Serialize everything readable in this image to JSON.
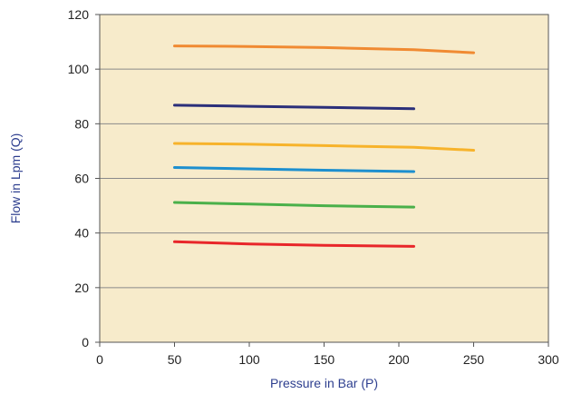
{
  "chart_data": {
    "type": "line",
    "title": "",
    "xlabel": "Pressure in Bar (P)",
    "ylabel": "Flow in Lpm (Q)",
    "xlim": [
      0,
      300
    ],
    "ylim": [
      0,
      120
    ],
    "x_ticks": [
      0,
      50,
      100,
      150,
      200,
      250,
      300
    ],
    "y_ticks": [
      0,
      20,
      40,
      60,
      80,
      100,
      120
    ],
    "grid": "horizontal",
    "background_color": "#f7ebcb",
    "series": [
      {
        "color": "#f08a32",
        "x": [
          50,
          100,
          150,
          210,
          250
        ],
        "y": [
          108.5,
          108.3,
          107.9,
          107.1,
          106
        ]
      },
      {
        "color": "#2b2f7a",
        "x": [
          50,
          100,
          150,
          210
        ],
        "y": [
          86.8,
          86.4,
          86,
          85.5
        ]
      },
      {
        "color": "#f7b32b",
        "x": [
          50,
          100,
          150,
          210,
          250
        ],
        "y": [
          72.8,
          72.5,
          72,
          71.4,
          70.3
        ]
      },
      {
        "color": "#1d8fcf",
        "x": [
          50,
          100,
          150,
          210
        ],
        "y": [
          64,
          63.5,
          63,
          62.5
        ]
      },
      {
        "color": "#4ab04a",
        "x": [
          50,
          100,
          150,
          210
        ],
        "y": [
          51.2,
          50.6,
          50,
          49.5
        ]
      },
      {
        "color": "#e8262a",
        "x": [
          50,
          100,
          150,
          210
        ],
        "y": [
          36.8,
          36,
          35.5,
          35.1
        ]
      }
    ]
  }
}
